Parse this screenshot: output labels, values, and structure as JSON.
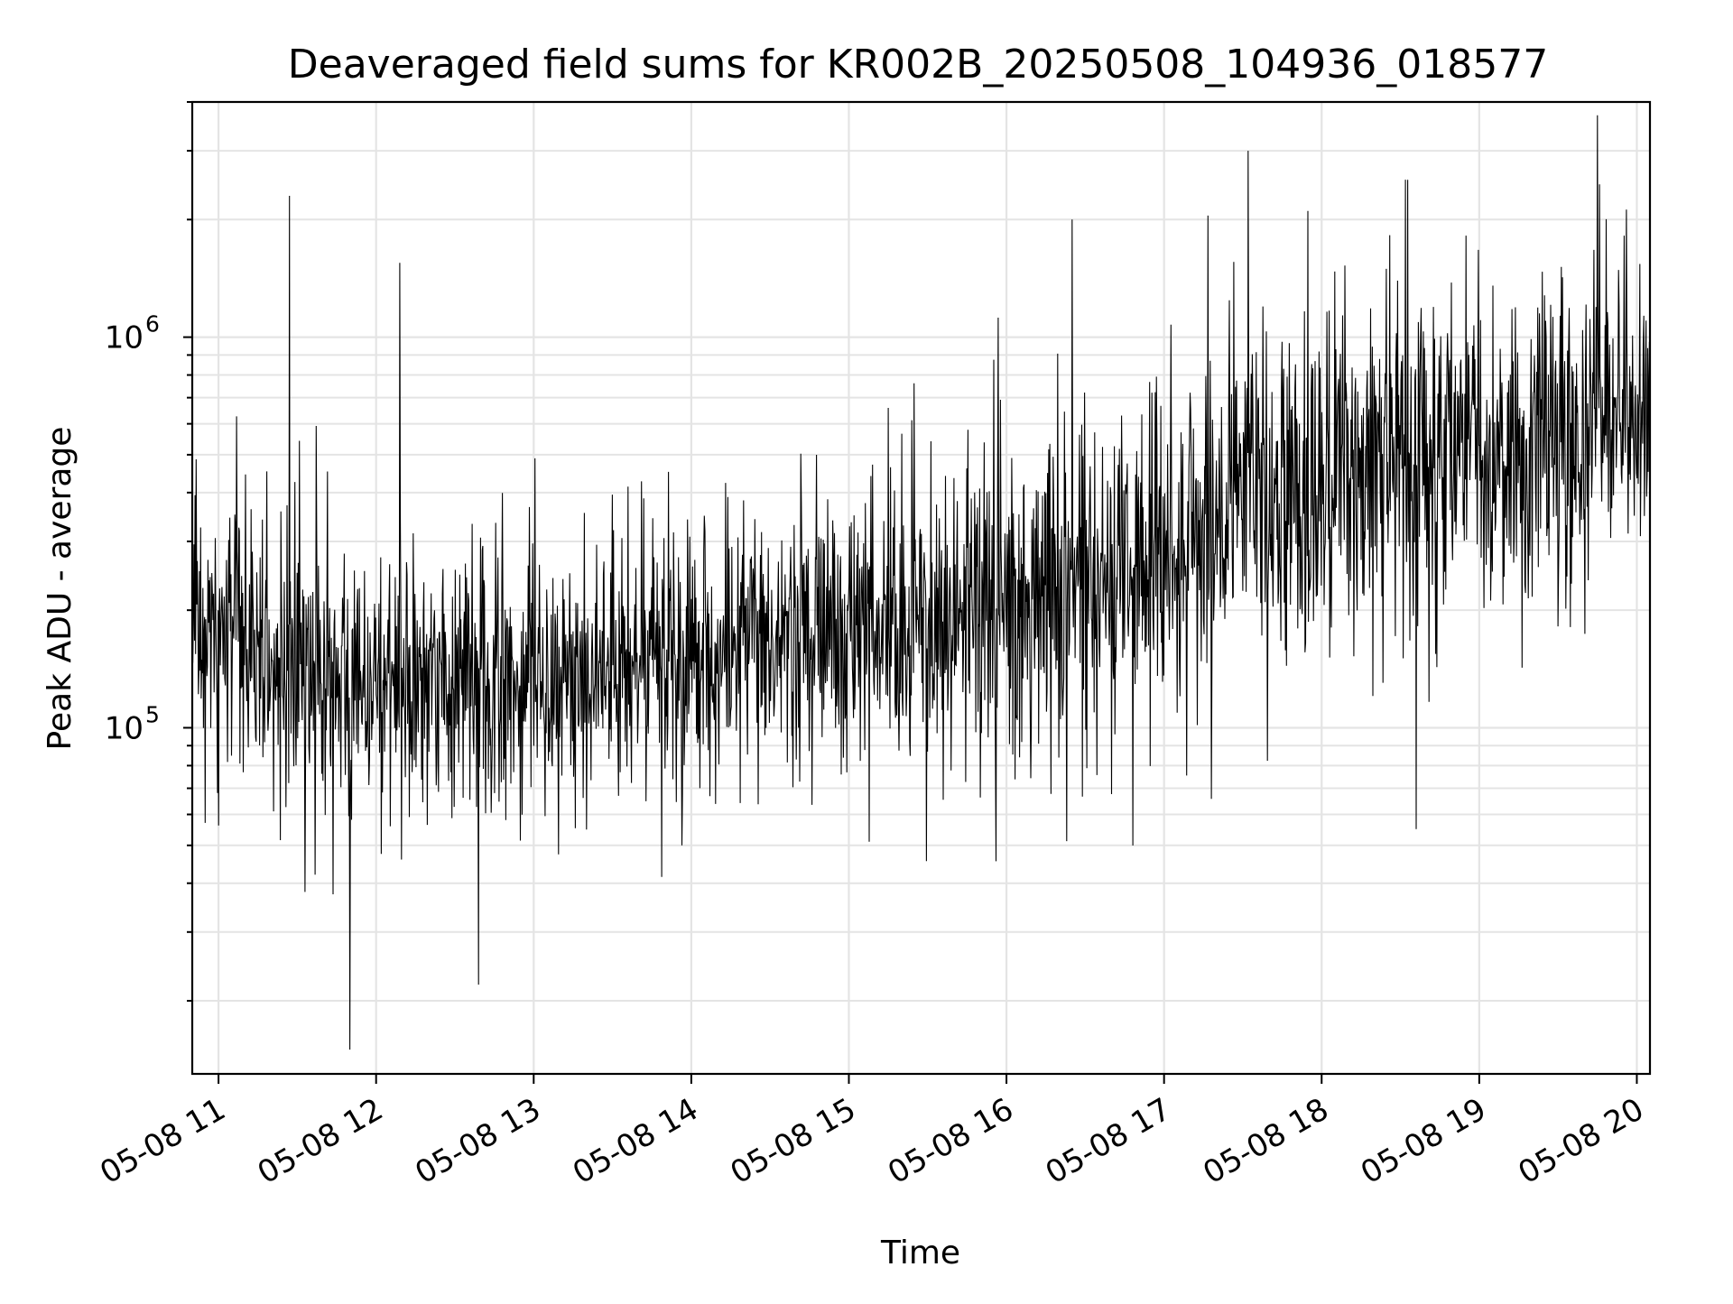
{
  "chart_data": {
    "type": "line",
    "title": "Deaveraged field sums for KR002B_20250508_104936_018577",
    "xlabel": "Time",
    "ylabel": "Peak ADU - average",
    "yscale": "log",
    "grid": true,
    "legend": "none",
    "xlim": [
      "2025-05-08 10:50",
      "2025-05-08 20:05"
    ],
    "ylim": [
      13000,
      4000000
    ],
    "x_ticks": [
      {
        "time": "2025-05-08 11:00",
        "label": "05-08 11"
      },
      {
        "time": "2025-05-08 12:00",
        "label": "05-08 12"
      },
      {
        "time": "2025-05-08 13:00",
        "label": "05-08 13"
      },
      {
        "time": "2025-05-08 14:00",
        "label": "05-08 14"
      },
      {
        "time": "2025-05-08 15:00",
        "label": "05-08 15"
      },
      {
        "time": "2025-05-08 16:00",
        "label": "05-08 16"
      },
      {
        "time": "2025-05-08 17:00",
        "label": "05-08 17"
      },
      {
        "time": "2025-05-08 18:00",
        "label": "05-08 18"
      },
      {
        "time": "2025-05-08 19:00",
        "label": "05-08 19"
      },
      {
        "time": "2025-05-08 20:00",
        "label": "05-08 20"
      }
    ],
    "y_ticks": [
      {
        "value": 100000,
        "base": "10",
        "exponent": "5"
      },
      {
        "value": 1000000,
        "base": "10",
        "exponent": "6"
      }
    ],
    "series": [
      {
        "color": "#000000",
        "time_range": [
          "2025-05-08 10:50",
          "2025-05-08 20:05"
        ],
        "x": [
          "2025-05-08 11:00",
          "2025-05-08 11:30",
          "2025-05-08 12:00",
          "2025-05-08 12:30",
          "2025-05-08 13:00",
          "2025-05-08 13:30",
          "2025-05-08 14:00",
          "2025-05-08 14:30",
          "2025-05-08 15:00",
          "2025-05-08 15:30",
          "2025-05-08 16:00",
          "2025-05-08 16:30",
          "2025-05-08 17:00",
          "2025-05-08 17:30",
          "2025-05-08 18:00",
          "2025-05-08 18:30",
          "2025-05-08 19:00",
          "2025-05-08 19:30",
          "2025-05-08 20:00"
        ],
        "typical_y": [
          180000,
          140000,
          130000,
          130000,
          140000,
          145000,
          150000,
          155000,
          175000,
          190000,
          220000,
          230000,
          270000,
          370000,
          430000,
          480000,
          520000,
          560000,
          620000
        ],
        "envelope_low": [
          60000,
          50000,
          45000,
          45000,
          50000,
          50000,
          55000,
          60000,
          65000,
          60000,
          60000,
          60000,
          70000,
          100000,
          130000,
          150000,
          160000,
          150000,
          220000
        ],
        "envelope_high": [
          500000,
          600000,
          500000,
          400000,
          450000,
          400000,
          500000,
          550000,
          700000,
          800000,
          950000,
          900000,
          1500000,
          2000000,
          2300000,
          2400000,
          2500000,
          2600000,
          2600000
        ],
        "peaks": [
          {
            "time": "2025-05-08 11:27",
            "y": 2300000
          },
          {
            "time": "2025-05-08 12:09",
            "y": 1550000
          },
          {
            "time": "2025-05-08 11:50",
            "y": 15000
          },
          {
            "time": "2025-05-08 12:39",
            "y": 22000
          },
          {
            "time": "2025-05-08 16:25",
            "y": 2000000
          },
          {
            "time": "2025-05-08 17:32",
            "y": 3000000
          },
          {
            "time": "2025-05-08 18:36",
            "y": 55000
          },
          {
            "time": "2025-05-08 19:45",
            "y": 3700000
          }
        ]
      }
    ]
  }
}
